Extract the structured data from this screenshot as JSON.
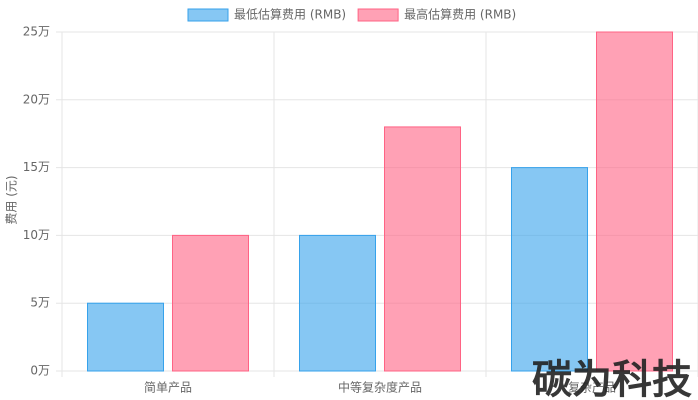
{
  "chart_data": {
    "type": "bar",
    "y_axis_label": "费用 (元)",
    "categories": [
      "简单产品",
      "中等复杂度产品",
      "复杂产品"
    ],
    "series": [
      {
        "name": "最低估算费用 (RMB)",
        "color": "#36a2eb",
        "values": [
          50000,
          100000,
          150000
        ]
      },
      {
        "name": "最高估算费用 (RMB)",
        "color": "#ff6384",
        "values": [
          100000,
          180000,
          250000
        ]
      }
    ],
    "ylim": [
      0,
      250000
    ],
    "yticks": [
      {
        "value": 0,
        "label": "0万"
      },
      {
        "value": 50000,
        "label": "5万"
      },
      {
        "value": 100000,
        "label": "10万"
      },
      {
        "value": 150000,
        "label": "15万"
      },
      {
        "value": 200000,
        "label": "20万"
      },
      {
        "value": 250000,
        "label": "25万"
      }
    ],
    "grid": true,
    "legend": "top",
    "watermark": "碳为科技"
  }
}
